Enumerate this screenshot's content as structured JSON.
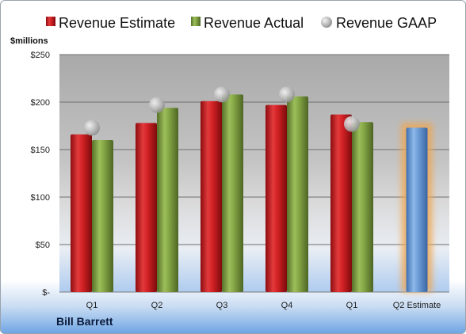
{
  "company": "Bill Barrett",
  "colors": {
    "estimate": "#c8181c",
    "actual": "#7a9b3a",
    "gaap": "#b8b8b8",
    "forecast": "#6f9fd8",
    "highlight": "#f0a650"
  },
  "chart_data": {
    "type": "bar",
    "ylabel": "$millions",
    "ylim": [
      0,
      250
    ],
    "yticks": [
      {
        "value": 0,
        "label": "$-"
      },
      {
        "value": 50,
        "label": "$50"
      },
      {
        "value": 100,
        "label": "$100"
      },
      {
        "value": 150,
        "label": "$150"
      },
      {
        "value": 200,
        "label": "$200"
      },
      {
        "value": 250,
        "label": "$250"
      }
    ],
    "categories": [
      "Q1",
      "Q2",
      "Q3",
      "Q4",
      "Q1",
      "Q2 Estimate"
    ],
    "series": [
      {
        "name": "Revenue Estimate",
        "kind": "bar",
        "values": [
          166,
          178,
          201,
          197,
          187,
          null
        ]
      },
      {
        "name": "Revenue Actual",
        "kind": "bar",
        "values": [
          160,
          194,
          208,
          206,
          179,
          null
        ]
      },
      {
        "name": "Revenue GAAP",
        "kind": "marker",
        "values": [
          173,
          197,
          208,
          208,
          177,
          null
        ]
      }
    ],
    "forecast": {
      "category_index": 5,
      "value": 173
    },
    "legend_position": "top",
    "grid": true
  }
}
